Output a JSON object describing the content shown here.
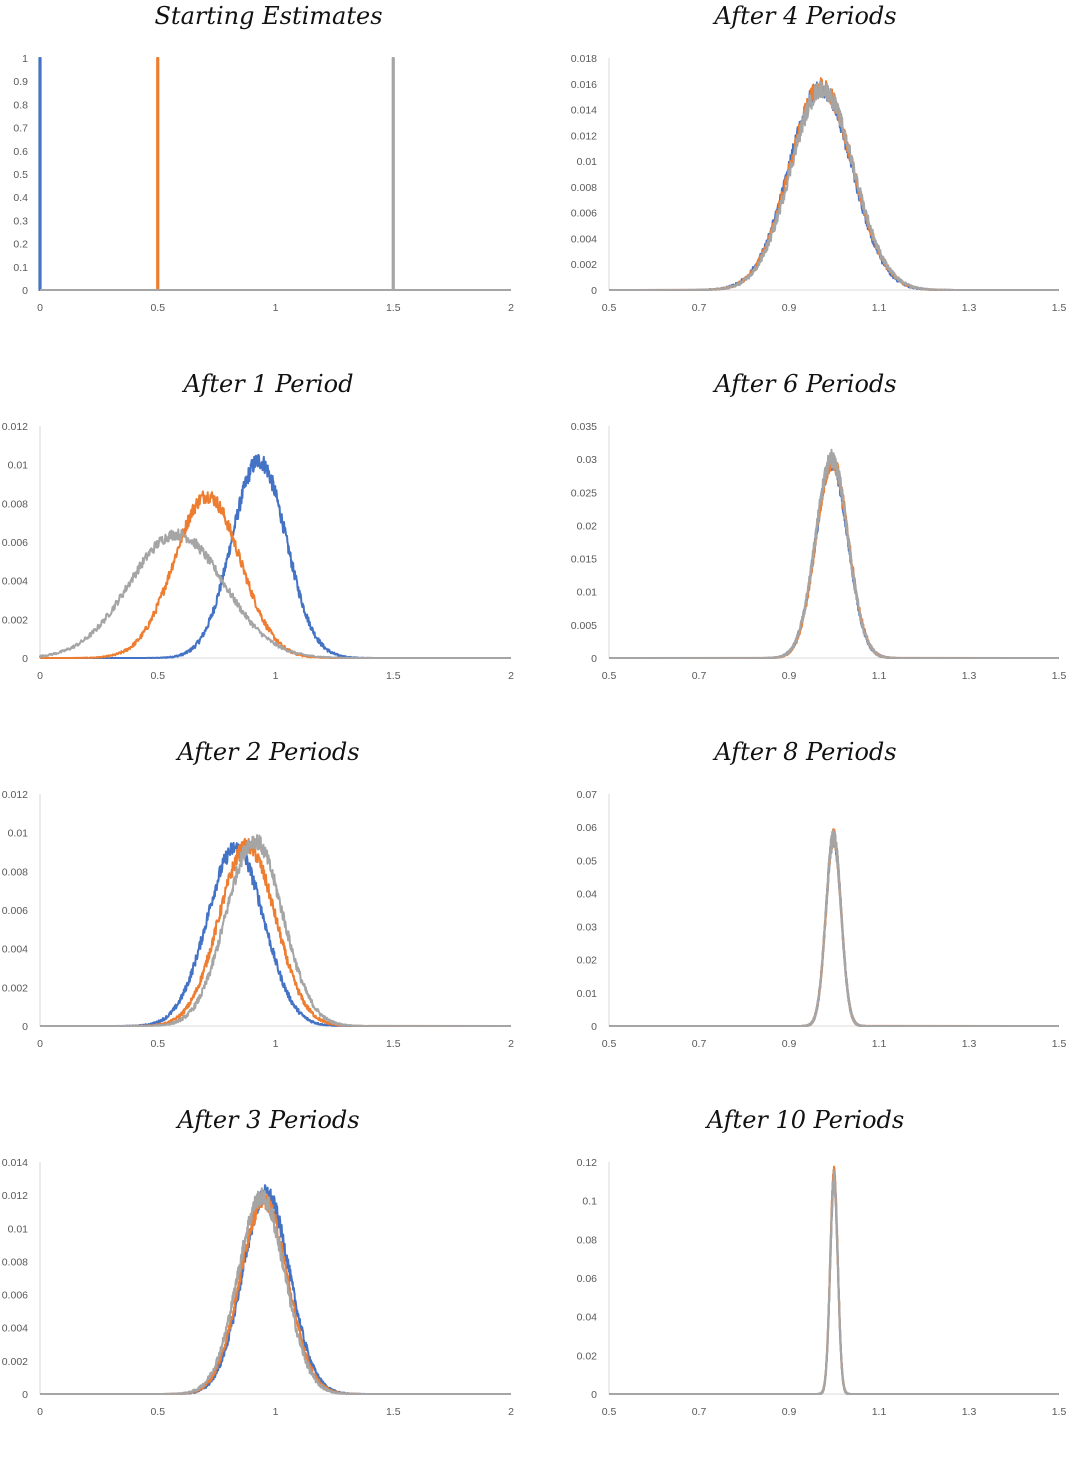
{
  "figure": {
    "series_colors": [
      "#4472C4",
      "#ED7D31",
      "#A5A5A5"
    ],
    "axis_color": "#D9D9D9",
    "tick_label_color": "#595959"
  },
  "chart_data": [
    {
      "type": "line",
      "title": "Starting Estimates",
      "xlim": [
        0,
        2
      ],
      "ylim": [
        0,
        1
      ],
      "xticks": [
        "0",
        "0.5",
        "1",
        "1.5",
        "2"
      ],
      "yticks": [
        "0",
        "0.1",
        "0.2",
        "0.3",
        "0.4",
        "0.5",
        "0.6",
        "0.7",
        "0.8",
        "0.9",
        "1"
      ],
      "grid": false,
      "legend": "none",
      "series": [
        {
          "kind": "spike",
          "at": 0.0,
          "height": 1
        },
        {
          "kind": "spike",
          "at": 0.5,
          "height": 1
        },
        {
          "kind": "spike",
          "at": 1.5,
          "height": 1
        }
      ]
    },
    {
      "type": "line",
      "title": "After 1 Period",
      "xlim": [
        0,
        2
      ],
      "ylim": [
        0,
        0.012
      ],
      "xticks": [
        "0",
        "0.5",
        "1",
        "1.5",
        "2"
      ],
      "yticks": [
        "0",
        "0.002",
        "0.004",
        "0.006",
        "0.008",
        "0.01",
        "0.012"
      ],
      "grid": false,
      "legend": "none",
      "series": [
        {
          "kind": "density",
          "mean": 0.93,
          "sd": 0.115,
          "peak": 0.0102
        },
        {
          "kind": "density",
          "mean": 0.71,
          "sd": 0.14,
          "peak": 0.0084
        },
        {
          "kind": "density",
          "mean": 0.58,
          "sd": 0.2,
          "peak": 0.0064
        }
      ]
    },
    {
      "type": "line",
      "title": "After 2 Periods",
      "xlim": [
        0,
        2
      ],
      "ylim": [
        0,
        0.012
      ],
      "xticks": [
        "0",
        "0.5",
        "1",
        "1.5",
        "2"
      ],
      "yticks": [
        "0",
        "0.002",
        "0.004",
        "0.006",
        "0.008",
        "0.01",
        "0.012"
      ],
      "grid": false,
      "legend": "none",
      "series": [
        {
          "kind": "density",
          "mean": 0.83,
          "sd": 0.12,
          "peak": 0.0092
        },
        {
          "kind": "density",
          "mean": 0.88,
          "sd": 0.12,
          "peak": 0.0093
        },
        {
          "kind": "density",
          "mean": 0.91,
          "sd": 0.12,
          "peak": 0.0096
        }
      ]
    },
    {
      "type": "line",
      "title": "After 3 Periods",
      "xlim": [
        0,
        2
      ],
      "ylim": [
        0,
        0.014
      ],
      "xticks": [
        "0",
        "0.5",
        "1",
        "1.5",
        "2"
      ],
      "yticks": [
        "0",
        "0.002",
        "0.004",
        "0.006",
        "0.008",
        "0.01",
        "0.012",
        "0.014"
      ],
      "grid": false,
      "legend": "none",
      "series": [
        {
          "kind": "density",
          "mean": 0.96,
          "sd": 0.1,
          "peak": 0.0121
        },
        {
          "kind": "density",
          "mean": 0.95,
          "sd": 0.1,
          "peak": 0.0117
        },
        {
          "kind": "density",
          "mean": 0.94,
          "sd": 0.1,
          "peak": 0.0119
        }
      ]
    },
    {
      "type": "line",
      "title": "After 4 Periods",
      "xlim": [
        0.5,
        1.5
      ],
      "ylim": [
        0,
        0.018
      ],
      "xticks": [
        "0.5",
        "0.7",
        "0.9",
        "1.1",
        "1.3",
        "1.5"
      ],
      "yticks": [
        "0",
        "0.002",
        "0.004",
        "0.006",
        "0.008",
        "0.01",
        "0.012",
        "0.014",
        "0.016",
        "0.018"
      ],
      "grid": false,
      "legend": "none",
      "series": [
        {
          "kind": "density",
          "mean": 0.97,
          "sd": 0.07,
          "peak": 0.0157
        },
        {
          "kind": "density",
          "mean": 0.972,
          "sd": 0.07,
          "peak": 0.0158
        },
        {
          "kind": "density",
          "mean": 0.974,
          "sd": 0.07,
          "peak": 0.0156
        }
      ]
    },
    {
      "type": "line",
      "title": "After 6 Periods",
      "xlim": [
        0.5,
        1.5
      ],
      "ylim": [
        0,
        0.035
      ],
      "xticks": [
        "0.5",
        "0.7",
        "0.9",
        "1.1",
        "1.3",
        "1.5"
      ],
      "yticks": [
        "0",
        "0.005",
        "0.01",
        "0.015",
        "0.02",
        "0.025",
        "0.03",
        "0.035"
      ],
      "grid": false,
      "legend": "none",
      "series": [
        {
          "kind": "density",
          "mean": 0.995,
          "sd": 0.036,
          "peak": 0.0295
        },
        {
          "kind": "density",
          "mean": 0.996,
          "sd": 0.036,
          "peak": 0.0297
        },
        {
          "kind": "density",
          "mean": 0.995,
          "sd": 0.036,
          "peak": 0.0301
        }
      ]
    },
    {
      "type": "line",
      "title": "After 8 Periods",
      "xlim": [
        0.5,
        1.5
      ],
      "ylim": [
        0,
        0.07
      ],
      "xticks": [
        "0.5",
        "0.7",
        "0.9",
        "1.1",
        "1.3",
        "1.5"
      ],
      "yticks": [
        "0",
        "0.01",
        "0.02",
        "0.03",
        "0.04",
        "0.05",
        "0.06",
        "0.07"
      ],
      "grid": false,
      "legend": "none",
      "series": [
        {
          "kind": "density",
          "mean": 0.999,
          "sd": 0.017,
          "peak": 0.0568
        },
        {
          "kind": "density",
          "mean": 0.999,
          "sd": 0.017,
          "peak": 0.057
        },
        {
          "kind": "density",
          "mean": 0.999,
          "sd": 0.017,
          "peak": 0.0574
        }
      ]
    },
    {
      "type": "line",
      "title": "After 10 Periods",
      "xlim": [
        0.5,
        1.5
      ],
      "ylim": [
        0,
        0.12
      ],
      "xticks": [
        "0.5",
        "0.7",
        "0.9",
        "1.1",
        "1.3",
        "1.5"
      ],
      "yticks": [
        "0",
        "0.02",
        "0.04",
        "0.06",
        "0.08",
        "0.1",
        "0.12"
      ],
      "grid": false,
      "legend": "none",
      "series": [
        {
          "kind": "density",
          "mean": 1.0,
          "sd": 0.0085,
          "peak": 0.112
        },
        {
          "kind": "density",
          "mean": 1.0,
          "sd": 0.0085,
          "peak": 0.113
        },
        {
          "kind": "density",
          "mean": 1.0,
          "sd": 0.0085,
          "peak": 0.111
        }
      ]
    }
  ]
}
